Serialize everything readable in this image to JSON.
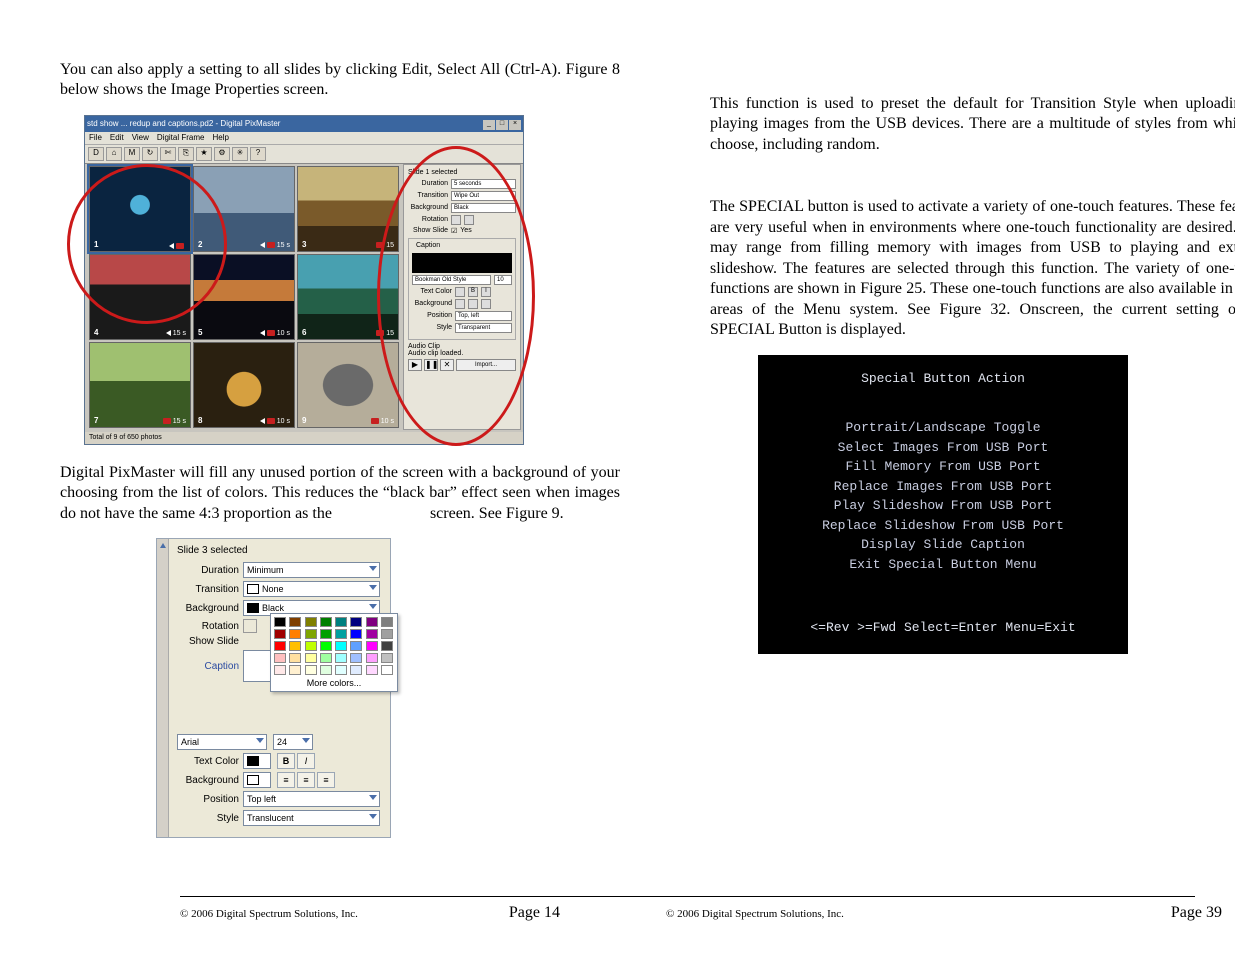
{
  "left": {
    "intro": "You can also apply a setting to all slides by clicking Edit, Select All (Ctrl-A). Figure 8 below shows the Image Properties screen.",
    "para2_a": " Digital PixMaster will fill any unused portion of the screen with a background of your choosing from the list of colors. This reduces the “black bar” effect seen when images do not have the same 4:3 proportion as the",
    "para2_b": "screen.  See Figure 9.",
    "footer_copy": "© 2006 Digital Spectrum Solutions, Inc.",
    "footer_page": "Page 14"
  },
  "right": {
    "para1": "This function is used to preset the default for Transition Style when uploading or playing images from the USB devices. There are a multitude of styles from which to choose, including random.",
    "para2": "The SPECIAL button is used to activate a variety of one-touch features. These features are very useful when in environments where one-touch functionality are desired. This may range from filling memory with images from USB to playing and external slideshow. The features are selected through this function. The variety of one-touch functions are shown in Figure 25. These one-touch functions are also available in other areas of the Menu system. See Figure 32. Onscreen, the current setting of the SPECIAL Button is displayed.",
    "footer_copy": "© 2006 Digital Spectrum Solutions, Inc.",
    "footer_page": "Page 39"
  },
  "fig8": {
    "window_title": "std show ... redup and captions.pd2 - Digital PixMaster",
    "menus": [
      "File",
      "Edit",
      "View",
      "Digital Frame",
      "Help"
    ],
    "toolbar_icons": [
      "D",
      "⌂",
      "M",
      "↻",
      "✄",
      "⎘",
      "★",
      "⚙",
      "✳",
      "?"
    ],
    "statusbar": "Total of 9 of 650 photos",
    "thumbs": [
      {
        "n": "1",
        "info": "",
        "sel": true,
        "audio": true,
        "icon": true,
        "cls": "th1"
      },
      {
        "n": "2",
        "info": "15 s",
        "sel": false,
        "audio": true,
        "icon": true,
        "cls": "th2"
      },
      {
        "n": "3",
        "info": "15",
        "sel": false,
        "audio": false,
        "icon": true,
        "cls": "th3"
      },
      {
        "n": "4",
        "info": "15 s",
        "sel": false,
        "audio": true,
        "icon": false,
        "cls": "th4"
      },
      {
        "n": "5",
        "info": "10 s",
        "sel": false,
        "audio": true,
        "icon": true,
        "cls": "th5"
      },
      {
        "n": "6",
        "info": "15",
        "sel": false,
        "audio": false,
        "icon": true,
        "cls": "th6"
      },
      {
        "n": "7",
        "info": "15 s",
        "sel": false,
        "audio": false,
        "icon": true,
        "cls": "th7"
      },
      {
        "n": "8",
        "info": "10 s",
        "sel": false,
        "audio": true,
        "icon": true,
        "cls": "th8"
      },
      {
        "n": "9",
        "info": "10 s",
        "sel": false,
        "audio": false,
        "icon": true,
        "cls": "th9"
      }
    ],
    "panel": {
      "title": "Slide 1 selected",
      "duration": "5 seconds",
      "transition": "Wipe Out",
      "background": "Black",
      "show_slide": "Yes",
      "caption_group": "Caption",
      "font": "Bookman Old Style",
      "fontsize": "10",
      "text_color_label": "Text Color",
      "bg_label": "Background",
      "position": "Top, left",
      "style": "Transparent",
      "audio_title": "Audio Clip",
      "audio_status": "Audio clip loaded.",
      "import": "Import..."
    }
  },
  "fig9": {
    "title": "Slide 3 selected",
    "rows": {
      "duration": "Minimum",
      "transition": "None",
      "background": "Black",
      "rotation_label": "Rotation",
      "show_slide_label": "Show Slide",
      "caption_label": "Caption",
      "font": "Arial",
      "fontsize": "24",
      "text_color_label": "Text Color",
      "bg_label": "Background",
      "position": "Top left",
      "style": "Translucent"
    },
    "more_colors": "More colors...",
    "palette": [
      [
        "#000000",
        "#7f3f00",
        "#7f7f00",
        "#007f00",
        "#007f7f",
        "#00007f",
        "#7f007f",
        "#7f7f7f"
      ],
      [
        "#a00000",
        "#ff7f00",
        "#7fa500",
        "#00a000",
        "#00a0a0",
        "#0000ff",
        "#a000a0",
        "#a0a0a0"
      ],
      [
        "#ff0000",
        "#ffbf00",
        "#bfff00",
        "#00ff00",
        "#00ffff",
        "#5fa0ff",
        "#ff00ff",
        "#404040"
      ],
      [
        "#ffbfbf",
        "#ffe0a0",
        "#ffffa0",
        "#a0ffa0",
        "#a0ffff",
        "#a0c0ff",
        "#ffa0ff",
        "#c0c0c0"
      ],
      [
        "#ffe8e8",
        "#fff0d0",
        "#ffffe0",
        "#e0ffe0",
        "#e0ffff",
        "#e0ecff",
        "#ffd8ff",
        "#ffffff"
      ]
    ]
  },
  "special": {
    "title": "Special Button Action",
    "items": [
      "Portrait/Landscape Toggle",
      "Select Images From USB Port",
      "Fill Memory From USB Port",
      "Replace Images From USB Port",
      "Play Slideshow From USB Port",
      "Replace Slideshow From USB Port",
      "Display Slide Caption",
      "Exit Special Button Menu"
    ],
    "nav": "<=Rev >=Fwd Select=Enter Menu=Exit"
  }
}
